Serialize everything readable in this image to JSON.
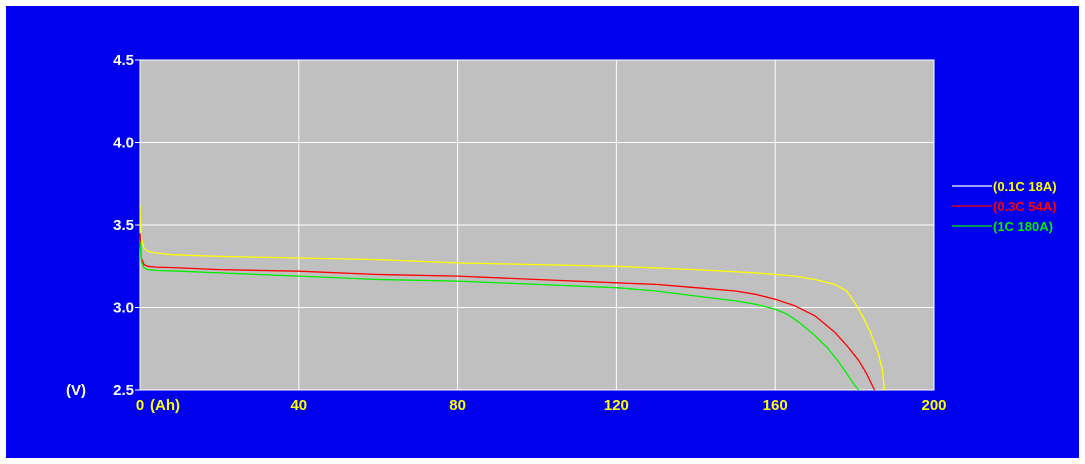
{
  "chart_data": {
    "type": "line",
    "title": "",
    "xlabel": "(Ah)",
    "ylabel": "(V)",
    "xlim": [
      0,
      200
    ],
    "ylim": [
      2.5,
      4.5
    ],
    "x_ticks": [
      "0",
      "40",
      "80",
      "120",
      "160",
      "200"
    ],
    "y_ticks": [
      "2.5",
      "3.0",
      "3.5",
      "4.0",
      "4.5"
    ],
    "grid": true,
    "legend_position": "right",
    "colors": {
      "background": "#0000ee",
      "plot_area": "#c0c0c0",
      "grid": "#ffffff",
      "axis_text": "#ffffff",
      "x_tick_text": "#ffff00"
    },
    "series": [
      {
        "name": "(0.1C 18A)",
        "color": "#ffff00",
        "legend_line_color": "#ffffff",
        "x": [
          0,
          0.3,
          1,
          2,
          4,
          8,
          20,
          40,
          60,
          80,
          100,
          120,
          140,
          155,
          160,
          165,
          170,
          175,
          178,
          180,
          182,
          184,
          186,
          187,
          187.5
        ],
        "y": [
          3.62,
          3.42,
          3.36,
          3.34,
          3.33,
          3.32,
          3.31,
          3.3,
          3.29,
          3.27,
          3.26,
          3.25,
          3.23,
          3.21,
          3.2,
          3.19,
          3.17,
          3.14,
          3.1,
          3.03,
          2.95,
          2.85,
          2.72,
          2.62,
          2.5
        ]
      },
      {
        "name": "(0.3C 54A)",
        "color": "#ff0000",
        "x": [
          0,
          0.3,
          1,
          2,
          4,
          10,
          20,
          40,
          60,
          80,
          100,
          120,
          130,
          140,
          150,
          155,
          160,
          165,
          170,
          175,
          178,
          181,
          183,
          185
        ],
        "y": [
          3.45,
          3.3,
          3.26,
          3.25,
          3.245,
          3.24,
          3.23,
          3.22,
          3.2,
          3.19,
          3.17,
          3.15,
          3.14,
          3.12,
          3.1,
          3.08,
          3.05,
          3.01,
          2.95,
          2.85,
          2.77,
          2.68,
          2.6,
          2.5
        ]
      },
      {
        "name": "(1C    180A)",
        "color": "#00ee00",
        "x": [
          0,
          0.3,
          1,
          2,
          4,
          10,
          20,
          40,
          60,
          80,
          100,
          120,
          130,
          140,
          150,
          155,
          160,
          163,
          166,
          170,
          173,
          176,
          178,
          180,
          181
        ],
        "y": [
          3.4,
          3.28,
          3.24,
          3.23,
          3.225,
          3.22,
          3.21,
          3.19,
          3.17,
          3.16,
          3.14,
          3.12,
          3.1,
          3.07,
          3.04,
          3.02,
          2.99,
          2.96,
          2.91,
          2.83,
          2.76,
          2.67,
          2.6,
          2.53,
          2.5
        ]
      }
    ]
  }
}
